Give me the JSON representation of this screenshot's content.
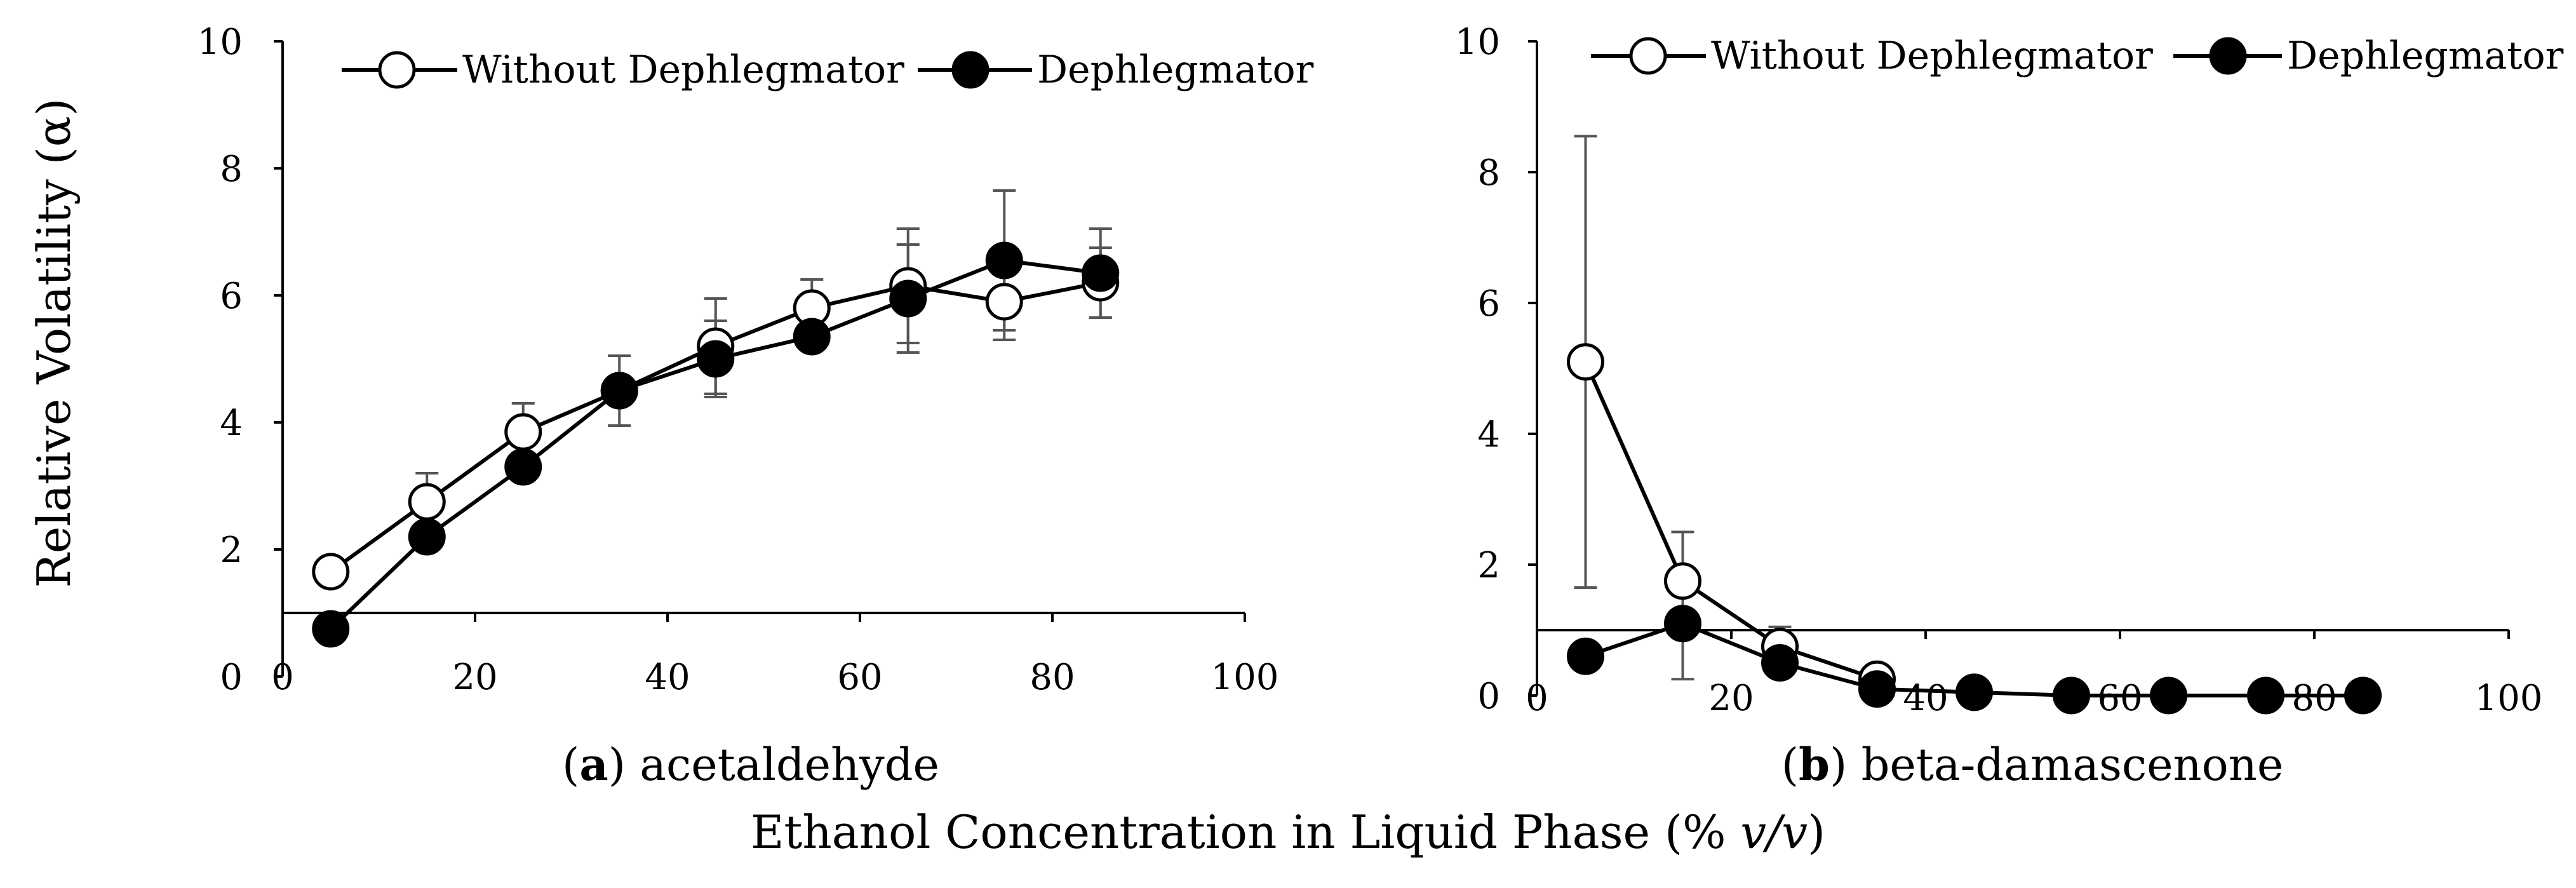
{
  "figure": {
    "ylabel": "Relative Volatility (α)",
    "xlabel_main": "Ethanol Concentration in Liquid Phase (% ",
    "xlabel_italic": "v/v",
    "xlabel_close": ")"
  },
  "chart_data": [
    {
      "type": "line",
      "panel_letter": "a",
      "panel_name": " acetaldehyde",
      "caption_open": "(",
      "caption_close": ")",
      "xlim": [
        0,
        100
      ],
      "ylim": [
        0,
        10
      ],
      "xticks": [
        "0",
        "20",
        "40",
        "60",
        "80",
        "100"
      ],
      "yticks": [
        "0",
        "2",
        "4",
        "6",
        "8",
        "10"
      ],
      "reference_line_y": 1,
      "legend_position": "top",
      "series": [
        {
          "name": "Without Dephlegmator",
          "marker": "open-circle",
          "x": [
            5,
            15,
            25,
            35,
            45,
            55,
            65,
            75,
            85
          ],
          "y": [
            1.65,
            2.75,
            3.85,
            4.5,
            5.2,
            5.8,
            6.15,
            5.9,
            6.2
          ],
          "err": [
            0,
            0.45,
            0.45,
            0,
            0.75,
            0.45,
            0.9,
            0.6,
            0.55
          ]
        },
        {
          "name": "Dephlegmator",
          "marker": "filled-circle",
          "x": [
            5,
            15,
            25,
            35,
            45,
            55,
            65,
            75,
            85
          ],
          "y": [
            0.75,
            2.2,
            3.3,
            4.5,
            5.0,
            5.35,
            5.95,
            6.55,
            6.35
          ],
          "err": [
            0,
            0,
            0,
            0.55,
            0.6,
            0,
            0.85,
            1.1,
            0.7
          ]
        }
      ]
    },
    {
      "type": "line",
      "panel_letter": "b",
      "panel_name": " beta-damascenone",
      "caption_open": "(",
      "caption_close": ")",
      "xlim": [
        0,
        100
      ],
      "ylim": [
        0,
        10
      ],
      "xticks": [
        "0",
        "20",
        "40",
        "60",
        "80",
        "100"
      ],
      "yticks": [
        "0",
        "2",
        "4",
        "6",
        "8",
        "10"
      ],
      "reference_line_y": 1,
      "legend_position": "top",
      "series": [
        {
          "name": "Without Dephlegmator",
          "marker": "open-circle",
          "x": [
            5,
            15,
            25,
            35
          ],
          "y": [
            5.1,
            1.75,
            0.75,
            0.25
          ],
          "err": [
            3.45,
            0.75,
            0.3,
            0
          ]
        },
        {
          "name": "Dephlegmator",
          "marker": "filled-circle",
          "x": [
            5,
            15,
            25,
            35,
            45,
            55,
            65,
            75,
            85
          ],
          "y": [
            0.6,
            1.1,
            0.5,
            0.1,
            0.05,
            0.0,
            0.0,
            0.0,
            0.0
          ],
          "err": [
            0,
            0.85,
            0,
            0,
            0,
            0,
            0,
            0,
            0
          ]
        }
      ]
    }
  ]
}
